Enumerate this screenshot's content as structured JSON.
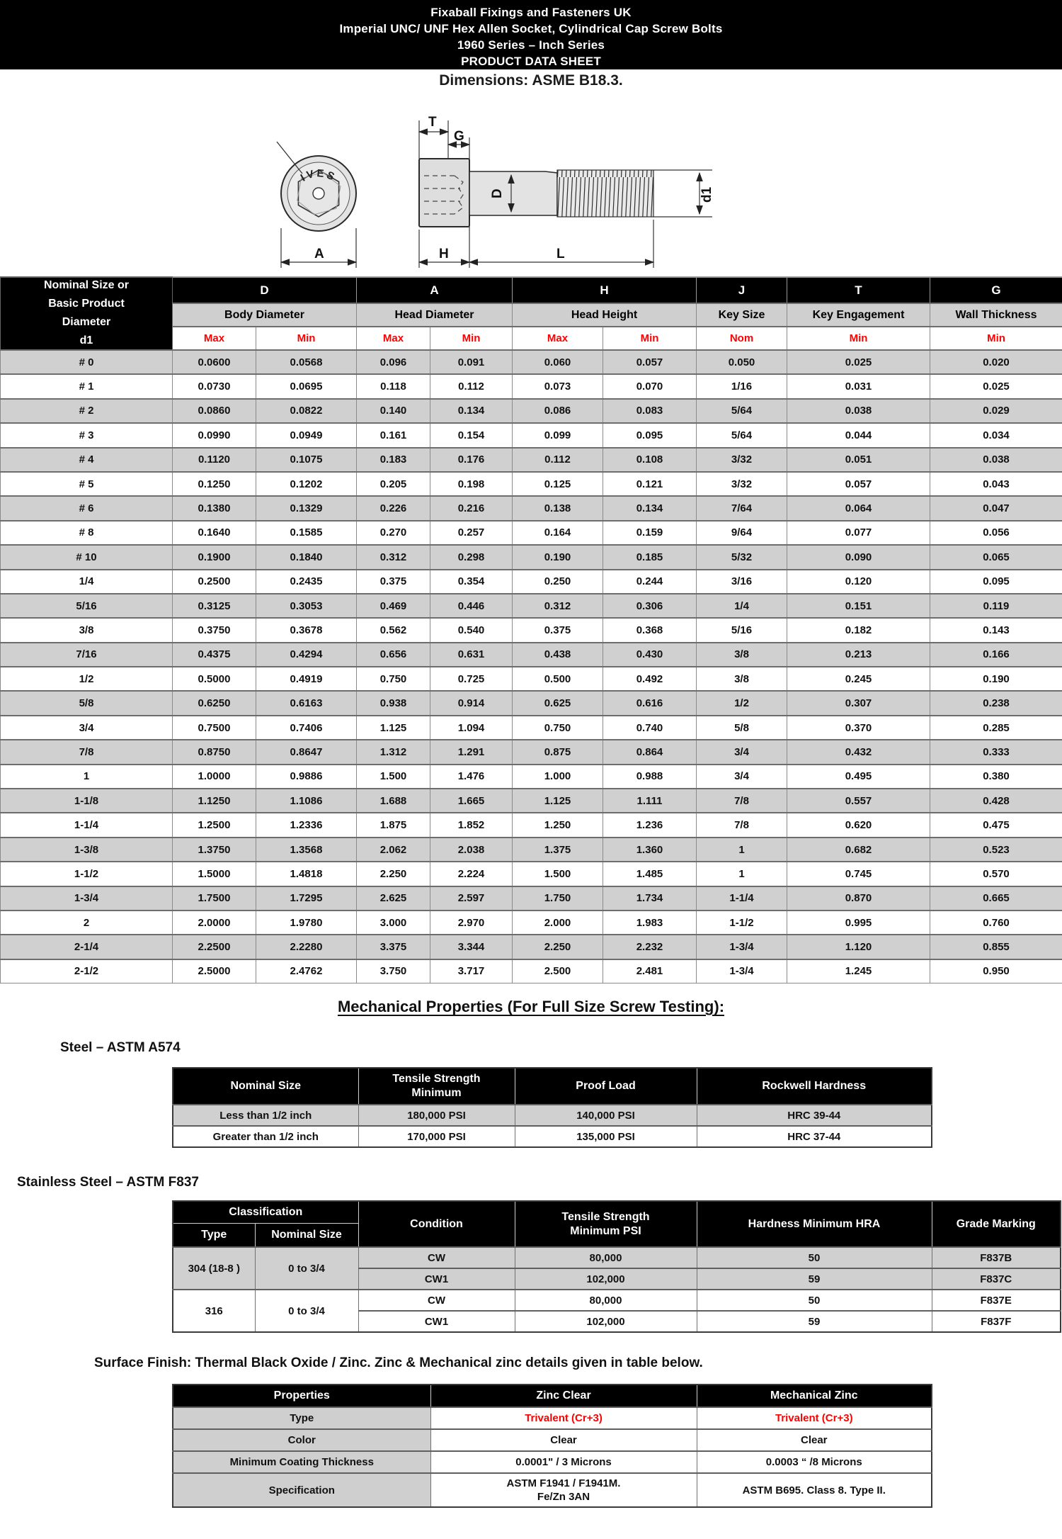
{
  "page": {
    "title_lines": [
      "Fixaball Fixings and Fasteners UK",
      "Imperial UNC/ UNF Hex Allen Socket, Cylindrical Cap Screw Bolts",
      "1960 Series – Inch Series",
      "PRODUCT DATA SHEET"
    ],
    "dimensions_note": "Dimensions: ASME B18.3."
  },
  "diagram": {
    "stamp": "IVES",
    "labels": {
      "t": "T",
      "g": "G",
      "d": "D",
      "d1": "d1",
      "a": "A",
      "h": "H",
      "l": "L"
    }
  },
  "main_table": {
    "corner_lines": [
      "Nominal Size or",
      "Basic Product",
      "Diameter",
      "d1"
    ],
    "col_letters": [
      "D",
      "A",
      "H",
      "J",
      "T",
      "G"
    ],
    "col_names": [
      "Body Diameter",
      "Head Diameter",
      "Head Height",
      "Key Size",
      "Key Engagement",
      "Wall Thickness"
    ],
    "subheaders": [
      "Max",
      "Min",
      "Max",
      "Min",
      "Max",
      "Min",
      "Nom",
      "Min",
      "Min"
    ],
    "rows": [
      [
        "# 0",
        "0.0600",
        "0.0568",
        "0.096",
        "0.091",
        "0.060",
        "0.057",
        "0.050",
        "0.025",
        "0.020"
      ],
      [
        "# 1",
        "0.0730",
        "0.0695",
        "0.118",
        "0.112",
        "0.073",
        "0.070",
        "1/16",
        "0.031",
        "0.025"
      ],
      [
        "# 2",
        "0.0860",
        "0.0822",
        "0.140",
        "0.134",
        "0.086",
        "0.083",
        "5/64",
        "0.038",
        "0.029"
      ],
      [
        "# 3",
        "0.0990",
        "0.0949",
        "0.161",
        "0.154",
        "0.099",
        "0.095",
        "5/64",
        "0.044",
        "0.034"
      ],
      [
        "# 4",
        "0.1120",
        "0.1075",
        "0.183",
        "0.176",
        "0.112",
        "0.108",
        "3/32",
        "0.051",
        "0.038"
      ],
      [
        "# 5",
        "0.1250",
        "0.1202",
        "0.205",
        "0.198",
        "0.125",
        "0.121",
        "3/32",
        "0.057",
        "0.043"
      ],
      [
        "# 6",
        "0.1380",
        "0.1329",
        "0.226",
        "0.216",
        "0.138",
        "0.134",
        "7/64",
        "0.064",
        "0.047"
      ],
      [
        "# 8",
        "0.1640",
        "0.1585",
        "0.270",
        "0.257",
        "0.164",
        "0.159",
        "9/64",
        "0.077",
        "0.056"
      ],
      [
        "# 10",
        "0.1900",
        "0.1840",
        "0.312",
        "0.298",
        "0.190",
        "0.185",
        "5/32",
        "0.090",
        "0.065"
      ],
      [
        "1/4",
        "0.2500",
        "0.2435",
        "0.375",
        "0.354",
        "0.250",
        "0.244",
        "3/16",
        "0.120",
        "0.095"
      ],
      [
        "5/16",
        "0.3125",
        "0.3053",
        "0.469",
        "0.446",
        "0.312",
        "0.306",
        "1/4",
        "0.151",
        "0.119"
      ],
      [
        "3/8",
        "0.3750",
        "0.3678",
        "0.562",
        "0.540",
        "0.375",
        "0.368",
        "5/16",
        "0.182",
        "0.143"
      ],
      [
        "7/16",
        "0.4375",
        "0.4294",
        "0.656",
        "0.631",
        "0.438",
        "0.430",
        "3/8",
        "0.213",
        "0.166"
      ],
      [
        "1/2",
        "0.5000",
        "0.4919",
        "0.750",
        "0.725",
        "0.500",
        "0.492",
        "3/8",
        "0.245",
        "0.190"
      ],
      [
        "5/8",
        "0.6250",
        "0.6163",
        "0.938",
        "0.914",
        "0.625",
        "0.616",
        "1/2",
        "0.307",
        "0.238"
      ],
      [
        "3/4",
        "0.7500",
        "0.7406",
        "1.125",
        "1.094",
        "0.750",
        "0.740",
        "5/8",
        "0.370",
        "0.285"
      ],
      [
        "7/8",
        "0.8750",
        "0.8647",
        "1.312",
        "1.291",
        "0.875",
        "0.864",
        "3/4",
        "0.432",
        "0.333"
      ],
      [
        "1",
        "1.0000",
        "0.9886",
        "1.500",
        "1.476",
        "1.000",
        "0.988",
        "3/4",
        "0.495",
        "0.380"
      ],
      [
        "1-1/8",
        "1.1250",
        "1.1086",
        "1.688",
        "1.665",
        "1.125",
        "1.111",
        "7/8",
        "0.557",
        "0.428"
      ],
      [
        "1-1/4",
        "1.2500",
        "1.2336",
        "1.875",
        "1.852",
        "1.250",
        "1.236",
        "7/8",
        "0.620",
        "0.475"
      ],
      [
        "1-3/8",
        "1.3750",
        "1.3568",
        "2.062",
        "2.038",
        "1.375",
        "1.360",
        "1",
        "0.682",
        "0.523"
      ],
      [
        "1-1/2",
        "1.5000",
        "1.4818",
        "2.250",
        "2.224",
        "1.500",
        "1.485",
        "1",
        "0.745",
        "0.570"
      ],
      [
        "1-3/4",
        "1.7500",
        "1.7295",
        "2.625",
        "2.597",
        "1.750",
        "1.734",
        "1-1/4",
        "0.870",
        "0.665"
      ],
      [
        "2",
        "2.0000",
        "1.9780",
        "3.000",
        "2.970",
        "2.000",
        "1.983",
        "1-1/2",
        "0.995",
        "0.760"
      ],
      [
        "2-1/4",
        "2.2500",
        "2.2280",
        "3.375",
        "3.344",
        "2.250",
        "2.232",
        "1-3/4",
        "1.120",
        "0.855"
      ],
      [
        "2-1/2",
        "2.5000",
        "2.4762",
        "3.750",
        "3.717",
        "2.500",
        "2.481",
        "1-3/4",
        "1.245",
        "0.950"
      ]
    ]
  },
  "mechanical": {
    "heading": "Mechanical Properties (For Full Size Screw Testing): "
  },
  "steel": {
    "label": "Steel – ASTM A574",
    "headers": [
      "Nominal Size",
      "Tensile Strength\nMinimum",
      "Proof Load",
      "Rockwell Hardness"
    ],
    "rows": [
      [
        "Less than 1/2 inch",
        "180,000 PSI",
        "140,000 PSI",
        "HRC 39-44"
      ],
      [
        "Greater than 1/2 inch",
        "170,000 PSI",
        "135,000 PSI",
        "HRC 37-44"
      ]
    ]
  },
  "stainless": {
    "label": "Stainless Steel – ASTM F837",
    "headers": {
      "classification": "Classification",
      "type": "Type",
      "nominal_size": "Nominal Size",
      "condition": "Condition",
      "tensile": "Tensile Strength\nMinimum PSI",
      "hardness": "Hardness Minimum HRA",
      "grade": "Grade Marking"
    },
    "groups": [
      {
        "type": "304 (18-8 )",
        "nominal": "0  to  3/4",
        "rows": [
          [
            "CW",
            "80,000",
            "50",
            "F837B"
          ],
          [
            "CW1",
            "102,000",
            "59",
            "F837C"
          ]
        ]
      },
      {
        "type": "316",
        "nominal": "0  to  3/4",
        "rows": [
          [
            "CW",
            "80,000",
            "50",
            "F837E"
          ],
          [
            "CW1",
            "102,000",
            "59",
            "F837F"
          ]
        ]
      }
    ]
  },
  "surface": {
    "note": "Surface Finish: Thermal Black Oxide / Zinc. Zinc & Mechanical zinc details given in table below.",
    "headers": [
      "Properties",
      "Zinc  Clear",
      "Mechanical Zinc"
    ],
    "rows": [
      {
        "label": "Type",
        "zinc": "Trivalent (Cr+3)",
        "mech": "Trivalent (Cr+3)",
        "red": true
      },
      {
        "label": "Color",
        "zinc": "Clear",
        "mech": "Clear",
        "red": false
      },
      {
        "label": "Minimum Coating Thickness",
        "zinc": "0.0001\" / 3 Microns",
        "mech": "0.0003 “ /8 Microns",
        "red": false
      },
      {
        "label": "Specification",
        "zinc": "ASTM F1941 / F1941M.\nFe/Zn 3AN",
        "mech": "ASTM B695. Class 8. Type II.",
        "red": false,
        "tall": true
      }
    ]
  },
  "colors": {
    "accent_red": "#FF0000",
    "row_gray": "#D0D0D0",
    "header_black": "#000000"
  }
}
